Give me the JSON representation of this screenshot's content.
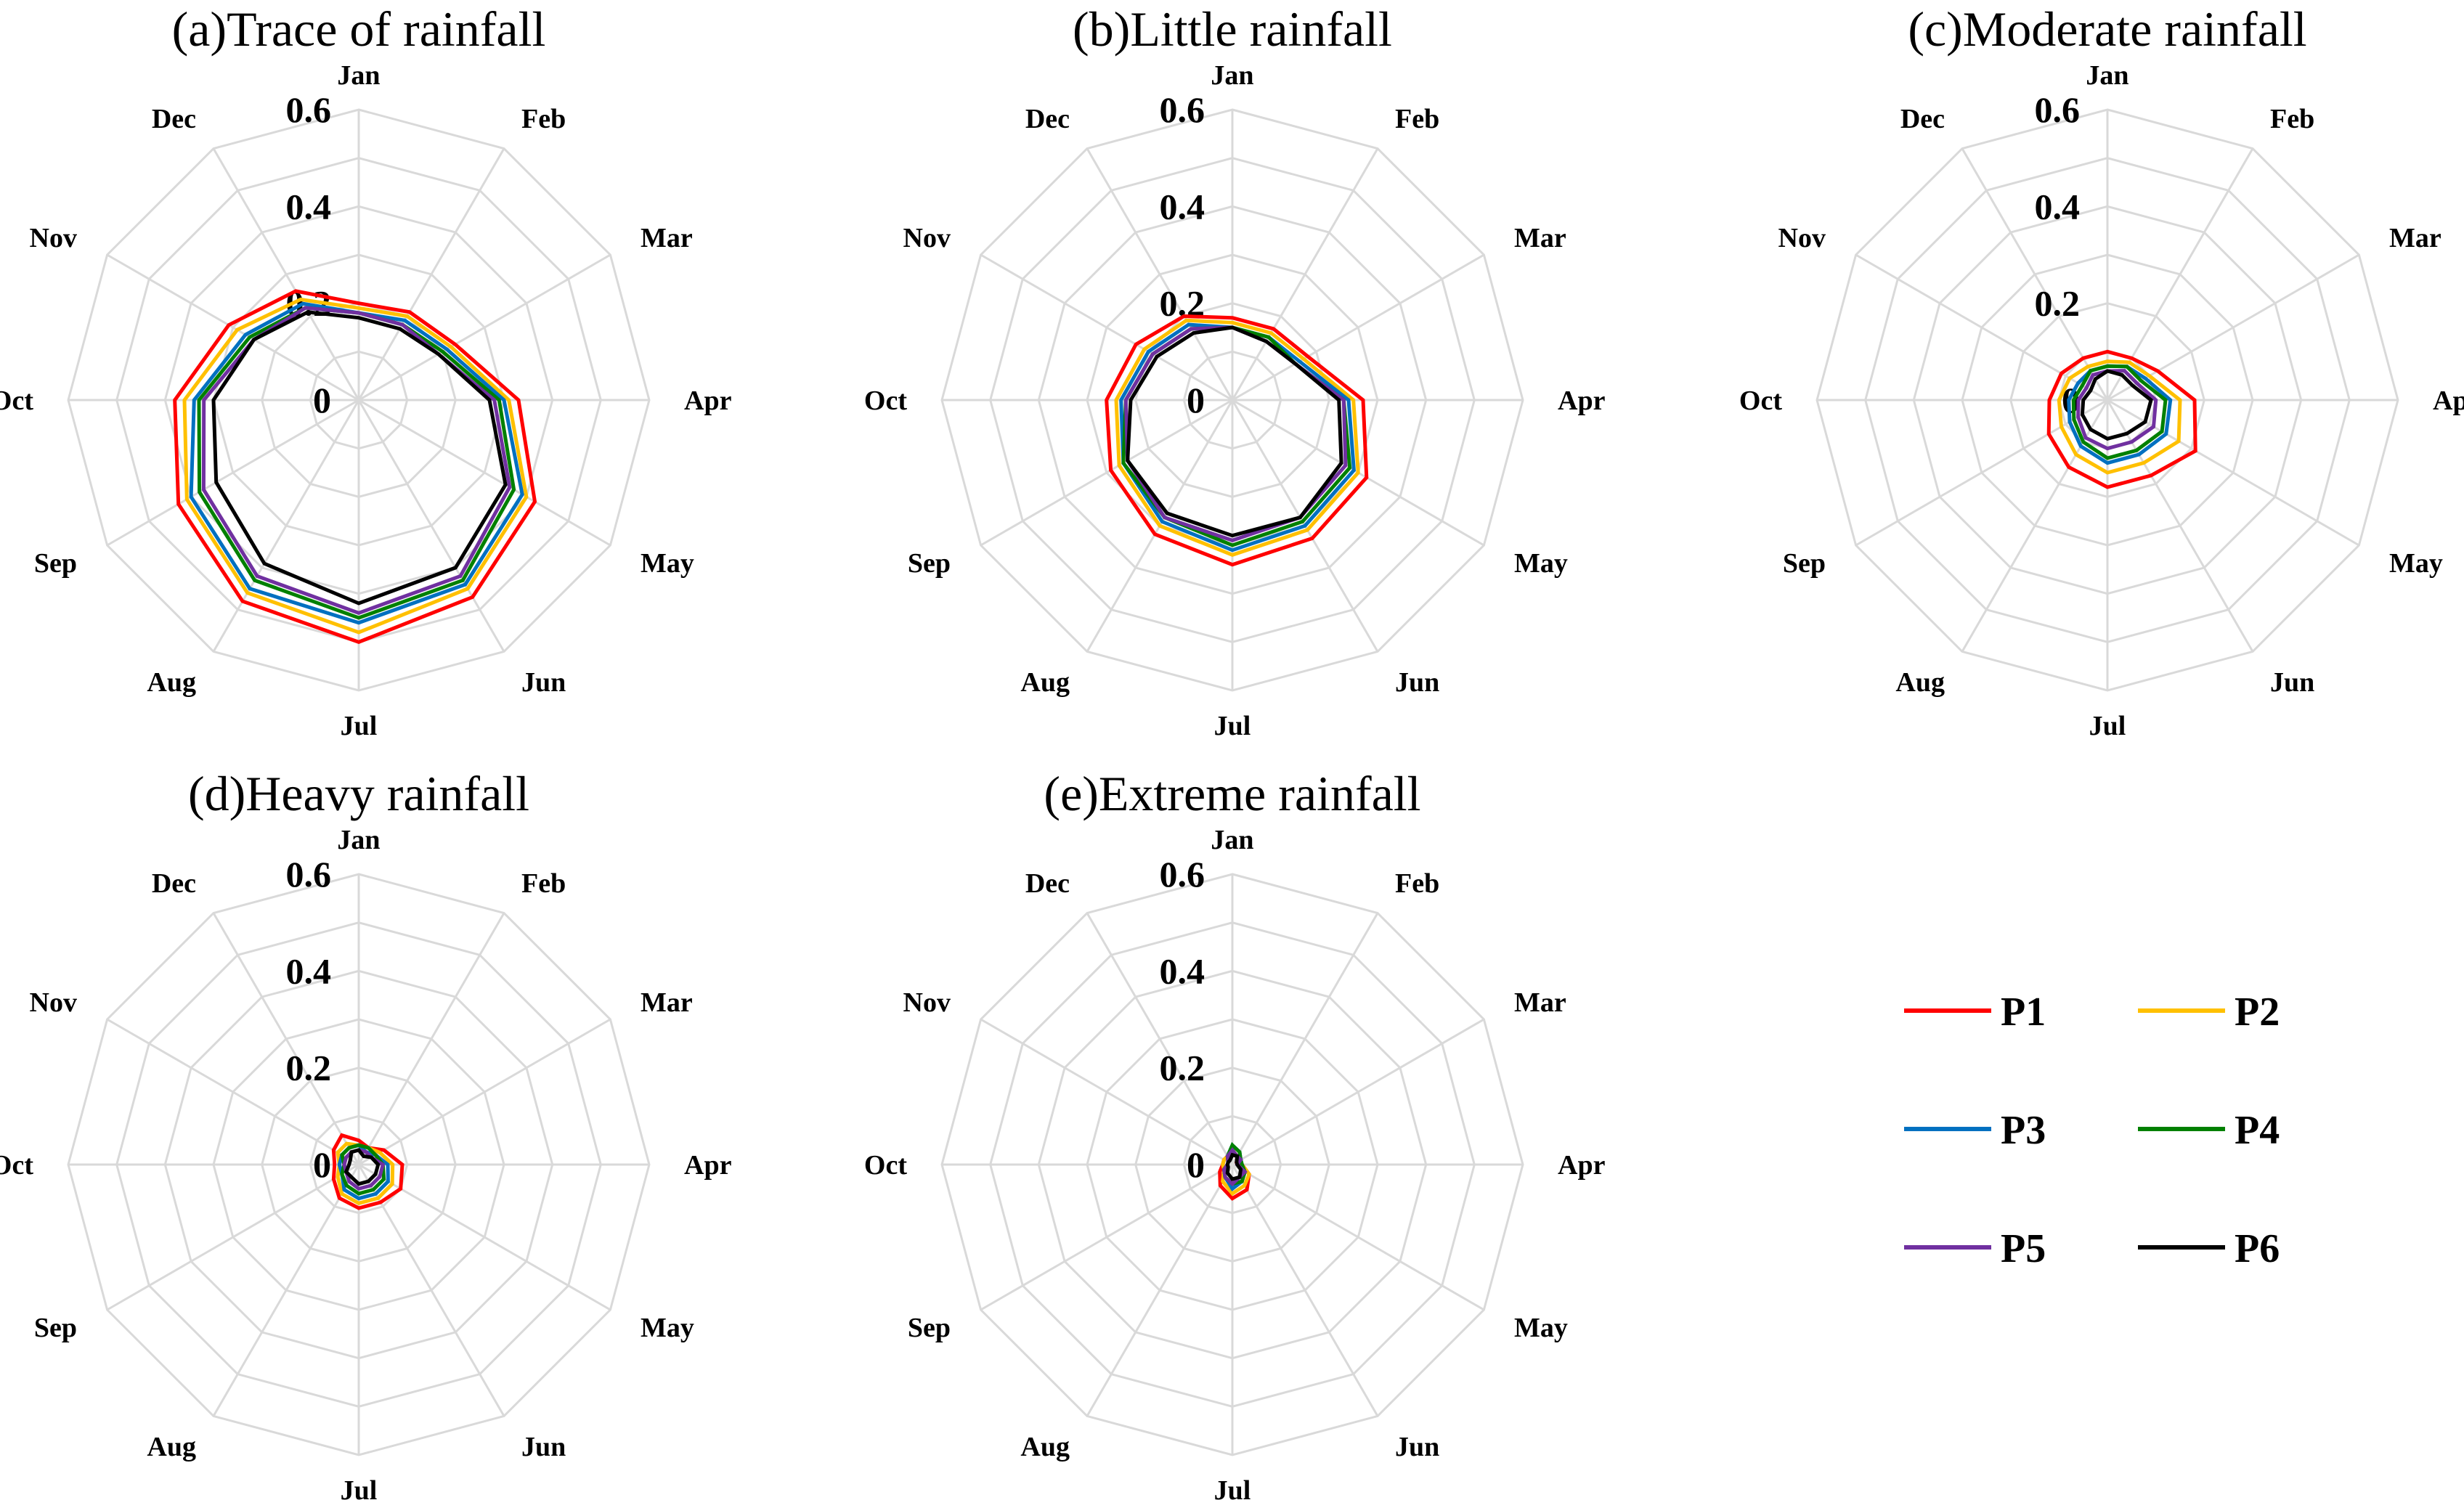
{
  "chart_data": [
    {
      "type": "radar",
      "title": "(a)Trace of rainfall",
      "categories": [
        "Jan",
        "Feb",
        "Mar",
        "Apr",
        "May",
        "Jun",
        "Jul",
        "Aug",
        "Sep",
        "Oct",
        "Nov",
        "Dec"
      ],
      "tick_labels": [
        "0",
        "0.2",
        "0.4",
        "0.6"
      ],
      "rlim": [
        0,
        0.6
      ],
      "series": [
        {
          "name": "P1",
          "values": [
            0.2,
            0.21,
            0.23,
            0.33,
            0.42,
            0.47,
            0.5,
            0.48,
            0.43,
            0.38,
            0.31,
            0.26
          ]
        },
        {
          "name": "P2",
          "values": [
            0.19,
            0.2,
            0.22,
            0.31,
            0.4,
            0.45,
            0.48,
            0.46,
            0.41,
            0.36,
            0.29,
            0.24
          ]
        },
        {
          "name": "P3",
          "values": [
            0.18,
            0.19,
            0.21,
            0.3,
            0.39,
            0.44,
            0.46,
            0.45,
            0.4,
            0.34,
            0.27,
            0.23
          ]
        },
        {
          "name": "P4",
          "values": [
            0.18,
            0.18,
            0.2,
            0.29,
            0.37,
            0.43,
            0.45,
            0.43,
            0.38,
            0.33,
            0.26,
            0.22
          ]
        },
        {
          "name": "P5",
          "values": [
            0.18,
            0.18,
            0.19,
            0.28,
            0.36,
            0.42,
            0.44,
            0.42,
            0.37,
            0.32,
            0.25,
            0.22
          ]
        },
        {
          "name": "P6",
          "values": [
            0.17,
            0.17,
            0.19,
            0.27,
            0.35,
            0.4,
            0.42,
            0.39,
            0.34,
            0.3,
            0.25,
            0.21
          ]
        }
      ]
    },
    {
      "type": "radar",
      "title": "(b)Little rainfall",
      "categories": [
        "Jan",
        "Feb",
        "Mar",
        "Apr",
        "May",
        "Jun",
        "Jul",
        "Aug",
        "Sep",
        "Oct",
        "Nov",
        "Dec"
      ],
      "tick_labels": [
        "0",
        "0.2",
        "0.4",
        "0.6"
      ],
      "rlim": [
        0,
        0.6
      ],
      "series": [
        {
          "name": "P1",
          "values": [
            0.17,
            0.17,
            0.18,
            0.27,
            0.32,
            0.33,
            0.34,
            0.32,
            0.29,
            0.26,
            0.23,
            0.2
          ]
        },
        {
          "name": "P2",
          "values": [
            0.16,
            0.16,
            0.17,
            0.25,
            0.3,
            0.31,
            0.32,
            0.3,
            0.27,
            0.24,
            0.21,
            0.19
          ]
        },
        {
          "name": "P3",
          "values": [
            0.15,
            0.15,
            0.16,
            0.24,
            0.29,
            0.3,
            0.31,
            0.29,
            0.26,
            0.23,
            0.2,
            0.18
          ]
        },
        {
          "name": "P4",
          "values": [
            0.15,
            0.15,
            0.15,
            0.23,
            0.28,
            0.29,
            0.3,
            0.28,
            0.26,
            0.22,
            0.19,
            0.17
          ]
        },
        {
          "name": "P5",
          "values": [
            0.15,
            0.14,
            0.15,
            0.23,
            0.27,
            0.28,
            0.29,
            0.28,
            0.25,
            0.22,
            0.19,
            0.17
          ]
        },
        {
          "name": "P6",
          "values": [
            0.15,
            0.14,
            0.15,
            0.22,
            0.26,
            0.28,
            0.28,
            0.27,
            0.25,
            0.21,
            0.18,
            0.16
          ]
        }
      ]
    },
    {
      "type": "radar",
      "title": "(c)Moderate rainfall",
      "categories": [
        "Jan",
        "Feb",
        "Mar",
        "Apr",
        "May",
        "Jun",
        "Jul",
        "Aug",
        "Sep",
        "Oct",
        "Nov",
        "Dec"
      ],
      "tick_labels": [
        "0",
        "0.2",
        "0.4",
        "0.6"
      ],
      "rlim": [
        0,
        0.6
      ],
      "series": [
        {
          "name": "P1",
          "values": [
            0.1,
            0.1,
            0.12,
            0.18,
            0.21,
            0.18,
            0.18,
            0.16,
            0.14,
            0.12,
            0.11,
            0.1
          ]
        },
        {
          "name": "P2",
          "values": [
            0.08,
            0.09,
            0.1,
            0.15,
            0.17,
            0.15,
            0.15,
            0.13,
            0.11,
            0.1,
            0.09,
            0.08
          ]
        },
        {
          "name": "P3",
          "values": [
            0.07,
            0.08,
            0.09,
            0.13,
            0.14,
            0.13,
            0.13,
            0.11,
            0.09,
            0.08,
            0.07,
            0.07
          ]
        },
        {
          "name": "P4",
          "values": [
            0.07,
            0.08,
            0.08,
            0.12,
            0.13,
            0.12,
            0.12,
            0.1,
            0.08,
            0.07,
            0.06,
            0.07
          ]
        },
        {
          "name": "P5",
          "values": [
            0.06,
            0.07,
            0.07,
            0.1,
            0.11,
            0.1,
            0.1,
            0.09,
            0.07,
            0.06,
            0.05,
            0.06
          ]
        },
        {
          "name": "P6",
          "values": [
            0.06,
            0.06,
            0.06,
            0.09,
            0.09,
            0.08,
            0.08,
            0.07,
            0.06,
            0.05,
            0.04,
            0.05
          ]
        }
      ]
    },
    {
      "type": "radar",
      "title": "(d)Heavy rainfall",
      "categories": [
        "Jan",
        "Feb",
        "Mar",
        "Apr",
        "May",
        "Jun",
        "Jul",
        "Aug",
        "Sep",
        "Oct",
        "Nov",
        "Dec"
      ],
      "tick_labels": [
        "0",
        "0.2",
        "0.4",
        "0.6"
      ],
      "rlim": [
        0,
        0.6
      ],
      "series": [
        {
          "name": "P1",
          "values": [
            0.05,
            0.04,
            0.06,
            0.09,
            0.1,
            0.09,
            0.09,
            0.08,
            0.06,
            0.05,
            0.06,
            0.07
          ]
        },
        {
          "name": "P2",
          "values": [
            0.04,
            0.04,
            0.05,
            0.07,
            0.08,
            0.08,
            0.08,
            0.07,
            0.05,
            0.04,
            0.05,
            0.05
          ]
        },
        {
          "name": "P3",
          "values": [
            0.04,
            0.03,
            0.04,
            0.06,
            0.07,
            0.07,
            0.07,
            0.06,
            0.04,
            0.04,
            0.04,
            0.04
          ]
        },
        {
          "name": "P4",
          "values": [
            0.04,
            0.04,
            0.04,
            0.05,
            0.06,
            0.06,
            0.06,
            0.05,
            0.04,
            0.03,
            0.04,
            0.04
          ]
        },
        {
          "name": "P5",
          "values": [
            0.03,
            0.03,
            0.03,
            0.05,
            0.05,
            0.05,
            0.05,
            0.04,
            0.03,
            0.03,
            0.03,
            0.03
          ]
        },
        {
          "name": "P6",
          "values": [
            0.03,
            0.02,
            0.03,
            0.04,
            0.04,
            0.04,
            0.04,
            0.03,
            0.03,
            0.02,
            0.02,
            0.03
          ]
        }
      ]
    },
    {
      "type": "radar",
      "title": "(e)Extreme rainfall",
      "categories": [
        "Jan",
        "Feb",
        "Mar",
        "Apr",
        "May",
        "Jun",
        "Jul",
        "Aug",
        "Sep",
        "Oct",
        "Nov",
        "Dec"
      ],
      "tick_labels": [
        "0",
        "0.2",
        "0.4",
        "0.6"
      ],
      "rlim": [
        0,
        0.6
      ],
      "series": [
        {
          "name": "P1",
          "values": [
            0.03,
            0.02,
            0.01,
            0.02,
            0.04,
            0.06,
            0.07,
            0.05,
            0.03,
            0.02,
            0.02,
            0.02
          ]
        },
        {
          "name": "P2",
          "values": [
            0.03,
            0.02,
            0.02,
            0.02,
            0.04,
            0.05,
            0.06,
            0.04,
            0.02,
            0.02,
            0.02,
            0.02
          ]
        },
        {
          "name": "P3",
          "values": [
            0.04,
            0.03,
            0.02,
            0.02,
            0.03,
            0.04,
            0.05,
            0.03,
            0.02,
            0.01,
            0.01,
            0.02
          ]
        },
        {
          "name": "P4",
          "values": [
            0.04,
            0.03,
            0.02,
            0.02,
            0.03,
            0.04,
            0.04,
            0.03,
            0.02,
            0.01,
            0.01,
            0.02
          ]
        },
        {
          "name": "P5",
          "values": [
            0.03,
            0.02,
            0.02,
            0.01,
            0.03,
            0.03,
            0.04,
            0.03,
            0.02,
            0.01,
            0.01,
            0.02
          ]
        },
        {
          "name": "P6",
          "values": [
            0.02,
            0.02,
            0.01,
            0.01,
            0.02,
            0.03,
            0.03,
            0.02,
            0.01,
            0.01,
            0.01,
            0.01
          ]
        }
      ]
    }
  ],
  "legend": [
    {
      "name": "P1",
      "color": "#ff0000"
    },
    {
      "name": "P2",
      "color": "#ffc000"
    },
    {
      "name": "P3",
      "color": "#0070c0"
    },
    {
      "name": "P4",
      "color": "#008000"
    },
    {
      "name": "P5",
      "color": "#7030a0"
    },
    {
      "name": "P6",
      "color": "#000000"
    }
  ]
}
